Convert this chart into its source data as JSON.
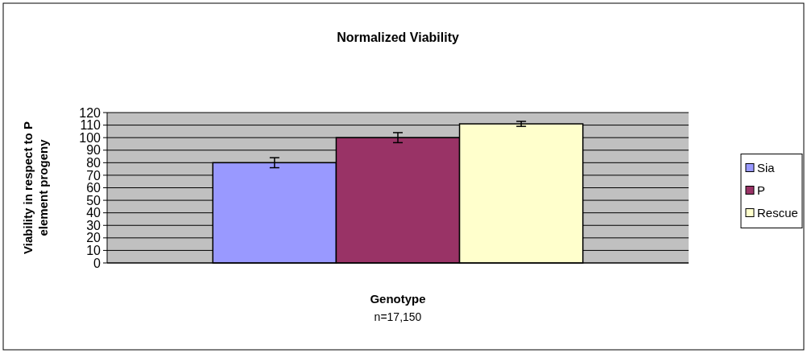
{
  "chart_data": {
    "type": "bar",
    "title": "Normalized Viability",
    "xlabel": "Genotype",
    "ylabel": "Viability in respect to P element progeny",
    "annotations": [
      "n=17,150"
    ],
    "categories": [
      null
    ],
    "series": [
      {
        "name": "Sia",
        "color": "#9999ff",
        "values": [
          80
        ],
        "errors": [
          4
        ]
      },
      {
        "name": "P",
        "color": "#993366",
        "values": [
          100
        ],
        "errors": [
          4
        ]
      },
      {
        "name": "Rescue",
        "color": "#ffffcc",
        "values": [
          111
        ],
        "errors": [
          2
        ]
      }
    ],
    "ylim": [
      0,
      120
    ],
    "yticks": [
      0,
      10,
      20,
      30,
      40,
      50,
      60,
      70,
      80,
      90,
      100,
      110,
      120
    ],
    "grid": "y",
    "legend": "right"
  }
}
